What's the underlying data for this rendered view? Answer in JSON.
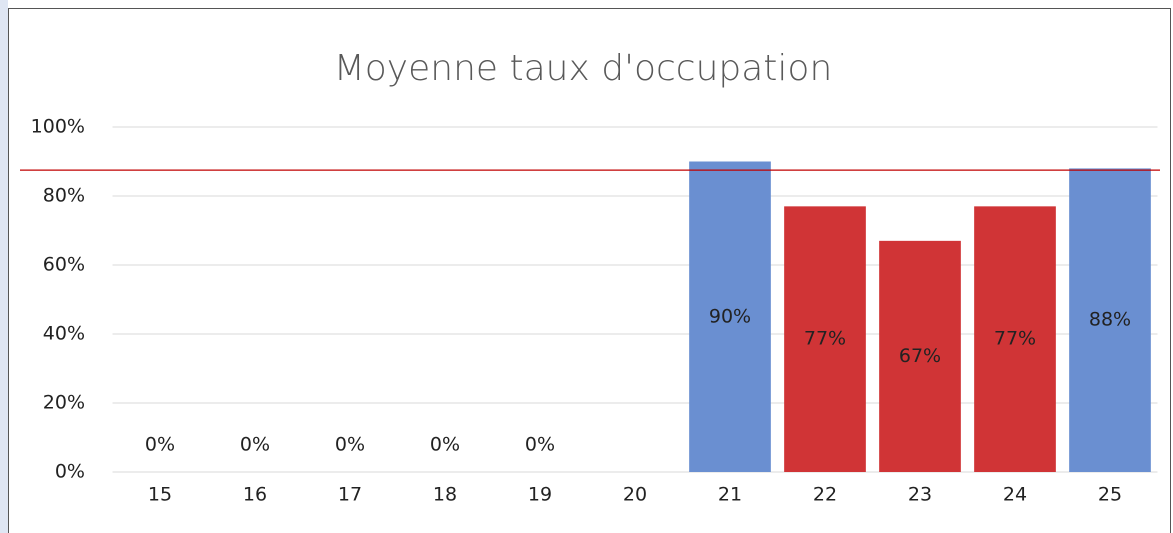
{
  "chart_data": {
    "type": "bar",
    "title": "Moyenne taux d'occupation",
    "categories": [
      "15",
      "16",
      "17",
      "18",
      "19",
      "20",
      "21",
      "22",
      "23",
      "24",
      "25"
    ],
    "values": [
      0,
      0,
      0,
      0,
      0,
      null,
      90,
      77,
      67,
      77,
      88
    ],
    "value_labels": [
      "0%",
      "0%",
      "0%",
      "0%",
      "0%",
      null,
      "90%",
      "77%",
      "67%",
      "77%",
      "88%"
    ],
    "colors": [
      "#6a8fd1",
      "#6a8fd1",
      "#6a8fd1",
      "#6a8fd1",
      "#6a8fd1",
      "#6a8fd1",
      "#6a8fd1",
      "#d03436",
      "#d03436",
      "#d03436",
      "#6a8fd1"
    ],
    "ylim": [
      0,
      100
    ],
    "yticks": [
      {
        "value": 0,
        "label": "0%"
      },
      {
        "value": 20,
        "label": "20%"
      },
      {
        "value": 40,
        "label": "40%"
      },
      {
        "value": 60,
        "label": "60%"
      },
      {
        "value": 80,
        "label": "80%"
      },
      {
        "value": 100,
        "label": "100%"
      }
    ],
    "grid": true,
    "reference_line": {
      "value": 87.5,
      "color": "#c00000"
    }
  }
}
